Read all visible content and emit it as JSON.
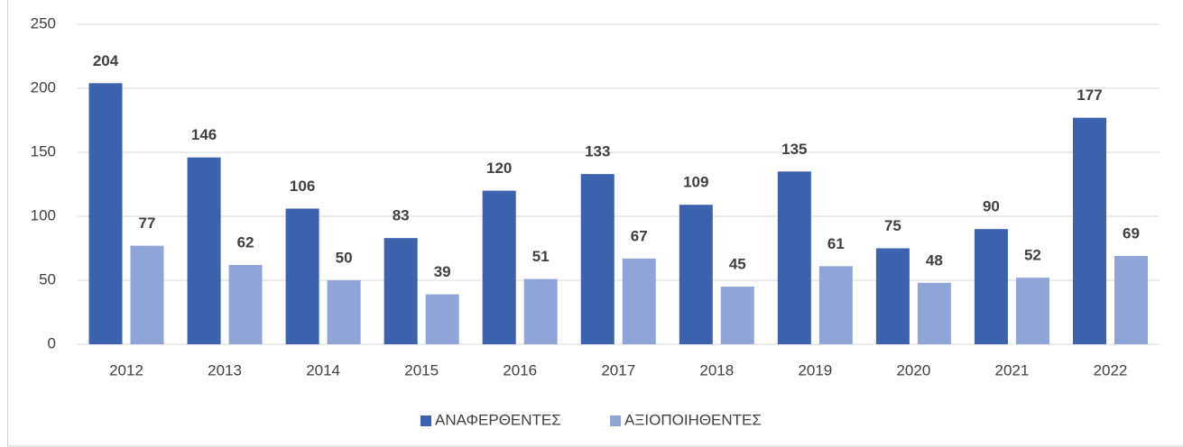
{
  "chart_data": {
    "type": "bar",
    "categories": [
      "2012",
      "2013",
      "2014",
      "2015",
      "2016",
      "2017",
      "2018",
      "2019",
      "2020",
      "2021",
      "2022"
    ],
    "series": [
      {
        "name": "ΑΝΑΦΕΡΘΕΝΤΕΣ",
        "color": "#3c61ad",
        "values": [
          204,
          146,
          106,
          83,
          120,
          133,
          109,
          135,
          75,
          90,
          177
        ]
      },
      {
        "name": "ΑΞΙΟΠΟΙΗΘΕΝΤΕΣ",
        "color": "#8fa5d8",
        "values": [
          77,
          62,
          50,
          39,
          51,
          67,
          45,
          61,
          48,
          52,
          69
        ]
      }
    ],
    "ylim": [
      0,
      250
    ],
    "yticks": [
      0,
      50,
      100,
      150,
      200,
      250
    ],
    "grid": true,
    "legend": "bottom"
  }
}
